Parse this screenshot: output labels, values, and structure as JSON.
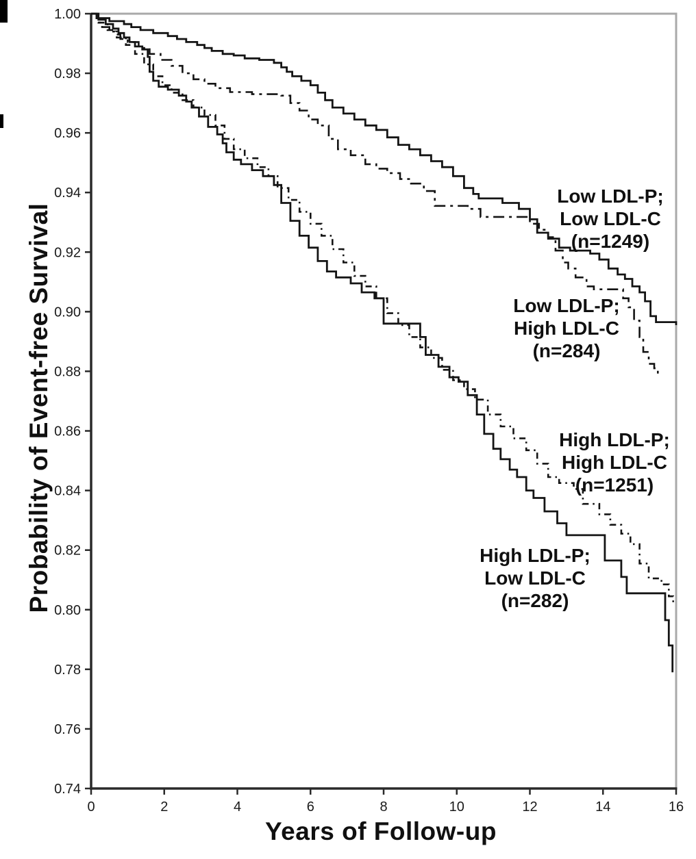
{
  "figure": {
    "background": "#ffffff",
    "curve_color": "#141414",
    "axis_color": "#2a2a2a",
    "box_border_color": "#a9a9a9",
    "tick_label_color": "#1a1a1a"
  },
  "chart_data": {
    "type": "line",
    "subtype": "kaplan-meier-step",
    "title": "",
    "xlabel": "Years of Follow-up",
    "ylabel": "Probability of Event-free Survival",
    "xlim": [
      0,
      16
    ],
    "ylim": [
      0.74,
      1.0
    ],
    "xticks": [
      "0",
      "2",
      "4",
      "6",
      "8",
      "10",
      "12",
      "14",
      "16"
    ],
    "yticks": [
      "1.00",
      "0.98",
      "0.96",
      "0.94",
      "0.92",
      "0.90",
      "0.88",
      "0.86",
      "0.84",
      "0.82",
      "0.80",
      "0.78",
      "0.76",
      "0.74"
    ],
    "grid": false,
    "legend": "inline-annotations",
    "series": [
      {
        "name": "Low LDL-P; Low LDL-C",
        "n": 1249,
        "annotation_lines": [
          "Low LDL-P;",
          "Low LDL-C",
          "(n=1249)"
        ],
        "line_style": "solid",
        "points": [
          [
            0,
            1.0
          ],
          [
            0.15,
            0.9985
          ],
          [
            0.5,
            0.9975
          ],
          [
            0.9,
            0.9965
          ],
          [
            1.1,
            0.9955
          ],
          [
            1.35,
            0.9945
          ],
          [
            1.7,
            0.9935
          ],
          [
            2.1,
            0.9925
          ],
          [
            2.35,
            0.9915
          ],
          [
            2.6,
            0.9905
          ],
          [
            2.9,
            0.9895
          ],
          [
            3.1,
            0.9885
          ],
          [
            3.3,
            0.9875
          ],
          [
            3.6,
            0.9865
          ],
          [
            3.9,
            0.986
          ],
          [
            4.2,
            0.985
          ],
          [
            4.6,
            0.9845
          ],
          [
            5.0,
            0.9835
          ],
          [
            5.2,
            0.982
          ],
          [
            5.35,
            0.9805
          ],
          [
            5.5,
            0.979
          ],
          [
            5.75,
            0.9775
          ],
          [
            6.0,
            0.976
          ],
          [
            6.2,
            0.9735
          ],
          [
            6.4,
            0.971
          ],
          [
            6.6,
            0.9685
          ],
          [
            6.9,
            0.9665
          ],
          [
            7.2,
            0.9645
          ],
          [
            7.5,
            0.9625
          ],
          [
            7.8,
            0.961
          ],
          [
            8.1,
            0.9585
          ],
          [
            8.4,
            0.956
          ],
          [
            8.7,
            0.9545
          ],
          [
            9.0,
            0.9525
          ],
          [
            9.3,
            0.9505
          ],
          [
            9.6,
            0.9485
          ],
          [
            9.9,
            0.9455
          ],
          [
            10.2,
            0.9415
          ],
          [
            10.45,
            0.9395
          ],
          [
            10.6,
            0.938
          ],
          [
            11.25,
            0.9365
          ],
          [
            11.7,
            0.9345
          ],
          [
            12.0,
            0.931
          ],
          [
            12.2,
            0.9265
          ],
          [
            12.5,
            0.9245
          ],
          [
            12.8,
            0.9215
          ],
          [
            13.1,
            0.9205
          ],
          [
            13.65,
            0.9195
          ],
          [
            13.9,
            0.9175
          ],
          [
            14.15,
            0.9145
          ],
          [
            14.4,
            0.9125
          ],
          [
            14.6,
            0.911
          ],
          [
            14.8,
            0.9085
          ],
          [
            15.0,
            0.9065
          ],
          [
            15.15,
            0.9035
          ],
          [
            15.3,
            0.8985
          ],
          [
            15.45,
            0.8965
          ],
          [
            16.0,
            0.8955
          ]
        ]
      },
      {
        "name": "Low LDL-P; High LDL-C",
        "n": 284,
        "annotation_lines": [
          "Low LDL-P;",
          "High LDL-C",
          "(n=284)"
        ],
        "line_style": "dash-dot",
        "points": [
          [
            0,
            1.0
          ],
          [
            0.15,
            0.997
          ],
          [
            0.3,
            0.9955
          ],
          [
            0.5,
            0.994
          ],
          [
            0.65,
            0.993
          ],
          [
            0.8,
            0.9915
          ],
          [
            1.0,
            0.9905
          ],
          [
            1.3,
            0.9885
          ],
          [
            1.6,
            0.9865
          ],
          [
            1.9,
            0.9845
          ],
          [
            2.2,
            0.9825
          ],
          [
            2.5,
            0.98
          ],
          [
            2.8,
            0.978
          ],
          [
            3.1,
            0.9765
          ],
          [
            3.4,
            0.975
          ],
          [
            3.8,
            0.9737
          ],
          [
            4.4,
            0.973
          ],
          [
            5.2,
            0.9725
          ],
          [
            5.45,
            0.97
          ],
          [
            5.7,
            0.9675
          ],
          [
            5.95,
            0.9645
          ],
          [
            6.2,
            0.9625
          ],
          [
            6.5,
            0.958
          ],
          [
            6.75,
            0.9545
          ],
          [
            7.1,
            0.9525
          ],
          [
            7.5,
            0.9495
          ],
          [
            7.8,
            0.948
          ],
          [
            8.1,
            0.9465
          ],
          [
            8.45,
            0.9445
          ],
          [
            8.75,
            0.943
          ],
          [
            9.1,
            0.9405
          ],
          [
            9.4,
            0.9355
          ],
          [
            10.3,
            0.9345
          ],
          [
            10.65,
            0.9318
          ],
          [
            11.7,
            0.9318
          ],
          [
            12.0,
            0.9295
          ],
          [
            12.25,
            0.9275
          ],
          [
            12.5,
            0.925
          ],
          [
            12.7,
            0.9205
          ],
          [
            12.9,
            0.9165
          ],
          [
            13.05,
            0.9145
          ],
          [
            13.25,
            0.9115
          ],
          [
            13.55,
            0.9085
          ],
          [
            13.75,
            0.9075
          ],
          [
            14.4,
            0.9075
          ],
          [
            14.55,
            0.9045
          ],
          [
            14.7,
            0.9015
          ],
          [
            14.85,
            0.897
          ],
          [
            15.0,
            0.8915
          ],
          [
            15.1,
            0.8865
          ],
          [
            15.25,
            0.8825
          ],
          [
            15.4,
            0.881
          ],
          [
            15.5,
            0.879
          ]
        ]
      },
      {
        "name": "High LDL-P; High LDL-C",
        "n": 1251,
        "annotation_lines": [
          "High LDL-P;",
          "High LDL-C",
          "(n=1251)"
        ],
        "line_style": "dash-dot",
        "points": [
          [
            0,
            1.0
          ],
          [
            0.2,
            0.997
          ],
          [
            0.45,
            0.9945
          ],
          [
            0.7,
            0.992
          ],
          [
            0.95,
            0.9895
          ],
          [
            1.2,
            0.9865
          ],
          [
            1.45,
            0.983
          ],
          [
            1.7,
            0.979
          ],
          [
            1.95,
            0.976
          ],
          [
            2.2,
            0.9735
          ],
          [
            2.5,
            0.971
          ],
          [
            2.8,
            0.9685
          ],
          [
            3.1,
            0.966
          ],
          [
            3.4,
            0.9625
          ],
          [
            3.65,
            0.958
          ],
          [
            3.9,
            0.9545
          ],
          [
            4.2,
            0.9515
          ],
          [
            4.55,
            0.9485
          ],
          [
            4.85,
            0.9455
          ],
          [
            5.1,
            0.9415
          ],
          [
            5.4,
            0.9375
          ],
          [
            5.7,
            0.9335
          ],
          [
            6.0,
            0.9295
          ],
          [
            6.3,
            0.9255
          ],
          [
            6.6,
            0.921
          ],
          [
            6.9,
            0.9165
          ],
          [
            7.2,
            0.912
          ],
          [
            7.5,
            0.9085
          ],
          [
            7.8,
            0.9045
          ],
          [
            8.1,
            0.8995
          ],
          [
            8.4,
            0.8955
          ],
          [
            8.7,
            0.8915
          ],
          [
            9.0,
            0.888
          ],
          [
            9.3,
            0.8845
          ],
          [
            9.6,
            0.8805
          ],
          [
            9.9,
            0.877
          ],
          [
            10.2,
            0.874
          ],
          [
            10.5,
            0.8705
          ],
          [
            10.85,
            0.8655
          ],
          [
            11.2,
            0.8615
          ],
          [
            11.55,
            0.8575
          ],
          [
            11.9,
            0.8535
          ],
          [
            12.2,
            0.849
          ],
          [
            12.5,
            0.8445
          ],
          [
            12.8,
            0.8425
          ],
          [
            13.2,
            0.8405
          ],
          [
            13.45,
            0.8355
          ],
          [
            13.9,
            0.832
          ],
          [
            14.2,
            0.8285
          ],
          [
            14.5,
            0.8255
          ],
          [
            14.75,
            0.822
          ],
          [
            15.0,
            0.8155
          ],
          [
            15.25,
            0.8105
          ],
          [
            15.6,
            0.8085
          ],
          [
            15.8,
            0.8045
          ],
          [
            15.92,
            0.802
          ]
        ]
      },
      {
        "name": "High LDL-P; Low LDL-C",
        "n": 282,
        "annotation_lines": [
          "High LDL-P;",
          "Low LDL-C",
          "(n=282)"
        ],
        "line_style": "solid",
        "points": [
          [
            0,
            1.0
          ],
          [
            0.2,
            0.998
          ],
          [
            0.4,
            0.9965
          ],
          [
            0.6,
            0.995
          ],
          [
            0.75,
            0.9935
          ],
          [
            0.9,
            0.992
          ],
          [
            1.05,
            0.9905
          ],
          [
            1.2,
            0.989
          ],
          [
            1.4,
            0.988
          ],
          [
            1.55,
            0.9855
          ],
          [
            1.6,
            0.9805
          ],
          [
            1.7,
            0.9775
          ],
          [
            1.85,
            0.9755
          ],
          [
            2.1,
            0.9745
          ],
          [
            2.4,
            0.9725
          ],
          [
            2.6,
            0.9705
          ],
          [
            2.75,
            0.9685
          ],
          [
            2.95,
            0.9655
          ],
          [
            3.2,
            0.962
          ],
          [
            3.45,
            0.9595
          ],
          [
            3.6,
            0.9565
          ],
          [
            3.7,
            0.9535
          ],
          [
            3.9,
            0.951
          ],
          [
            4.1,
            0.9495
          ],
          [
            4.4,
            0.9475
          ],
          [
            4.7,
            0.9455
          ],
          [
            5.0,
            0.9425
          ],
          [
            5.2,
            0.9365
          ],
          [
            5.45,
            0.9305
          ],
          [
            5.7,
            0.9255
          ],
          [
            5.95,
            0.9215
          ],
          [
            6.2,
            0.917
          ],
          [
            6.45,
            0.9135
          ],
          [
            6.7,
            0.9115
          ],
          [
            7.1,
            0.9095
          ],
          [
            7.4,
            0.9065
          ],
          [
            7.75,
            0.9045
          ],
          [
            8.0,
            0.896
          ],
          [
            8.9,
            0.896
          ],
          [
            9.0,
            0.8915
          ],
          [
            9.15,
            0.8855
          ],
          [
            9.5,
            0.8815
          ],
          [
            9.8,
            0.878
          ],
          [
            10.05,
            0.8765
          ],
          [
            10.3,
            0.872
          ],
          [
            10.55,
            0.8655
          ],
          [
            10.75,
            0.859
          ],
          [
            11.0,
            0.854
          ],
          [
            11.2,
            0.8505
          ],
          [
            11.45,
            0.847
          ],
          [
            11.65,
            0.8445
          ],
          [
            11.9,
            0.84
          ],
          [
            12.1,
            0.8375
          ],
          [
            12.4,
            0.833
          ],
          [
            12.75,
            0.829
          ],
          [
            13.0,
            0.825
          ],
          [
            13.9,
            0.825
          ],
          [
            14.05,
            0.8165
          ],
          [
            14.5,
            0.811
          ],
          [
            14.65,
            0.8055
          ],
          [
            15.65,
            0.8055
          ],
          [
            15.7,
            0.7965
          ],
          [
            15.8,
            0.788
          ],
          [
            15.9,
            0.779
          ]
        ]
      }
    ]
  }
}
